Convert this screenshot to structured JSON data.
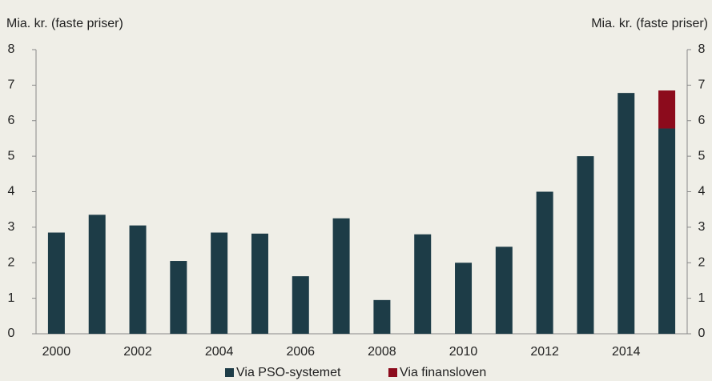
{
  "chart_data": {
    "type": "stacked_bar",
    "ylabel": "Mia. kr. (faste priser)",
    "y2label": "Mia. kr. (faste priser)",
    "categories": [
      "2000",
      null,
      "2002",
      null,
      "2004",
      null,
      "2006",
      null,
      "2008",
      null,
      "2010",
      null,
      "2012",
      null,
      "2014",
      null
    ],
    "series": [
      {
        "name": "Via PSO-systemet",
        "color": "#1d3c47",
        "values": [
          2.85,
          3.35,
          3.05,
          2.05,
          2.85,
          2.82,
          1.62,
          3.25,
          0.95,
          2.8,
          2.0,
          2.45,
          4.0,
          5.0,
          6.78,
          5.78
        ]
      },
      {
        "name": "Via finansloven",
        "color": "#8c0b1c",
        "values": [
          null,
          null,
          null,
          null,
          null,
          null,
          null,
          null,
          null,
          null,
          null,
          null,
          null,
          null,
          null,
          1.07
        ]
      }
    ],
    "ylim": [
      0,
      8
    ],
    "yticks": [
      0,
      1,
      2,
      3,
      4,
      5,
      6,
      7,
      8
    ],
    "y2lim": [
      0,
      8
    ],
    "y2ticks": [
      0,
      1,
      2,
      3,
      4,
      5,
      6,
      7,
      8
    ]
  }
}
